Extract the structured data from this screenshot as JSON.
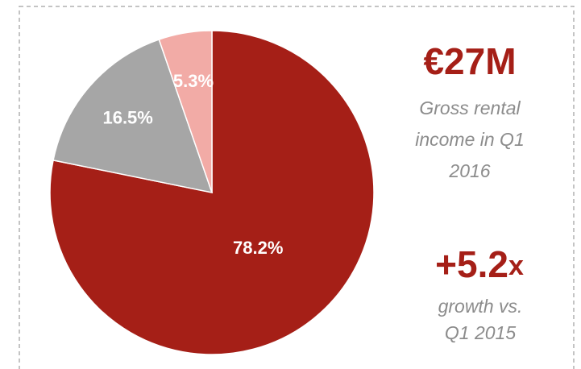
{
  "chart_data": {
    "type": "pie",
    "values": [
      78.2,
      16.5,
      5.3
    ],
    "value_labels": [
      "78.2%",
      "16.5%",
      "5.3%"
    ],
    "colors": [
      "#a51f17",
      "#a6a6a6",
      "#f2aba6"
    ]
  },
  "kpis": [
    {
      "value": "€27M",
      "caption": [
        "Gross rental",
        "income in Q1",
        "2016"
      ]
    },
    {
      "value": "+5.2",
      "unit": "x",
      "caption": [
        "growth vs.",
        "Q1 2015"
      ]
    }
  ]
}
